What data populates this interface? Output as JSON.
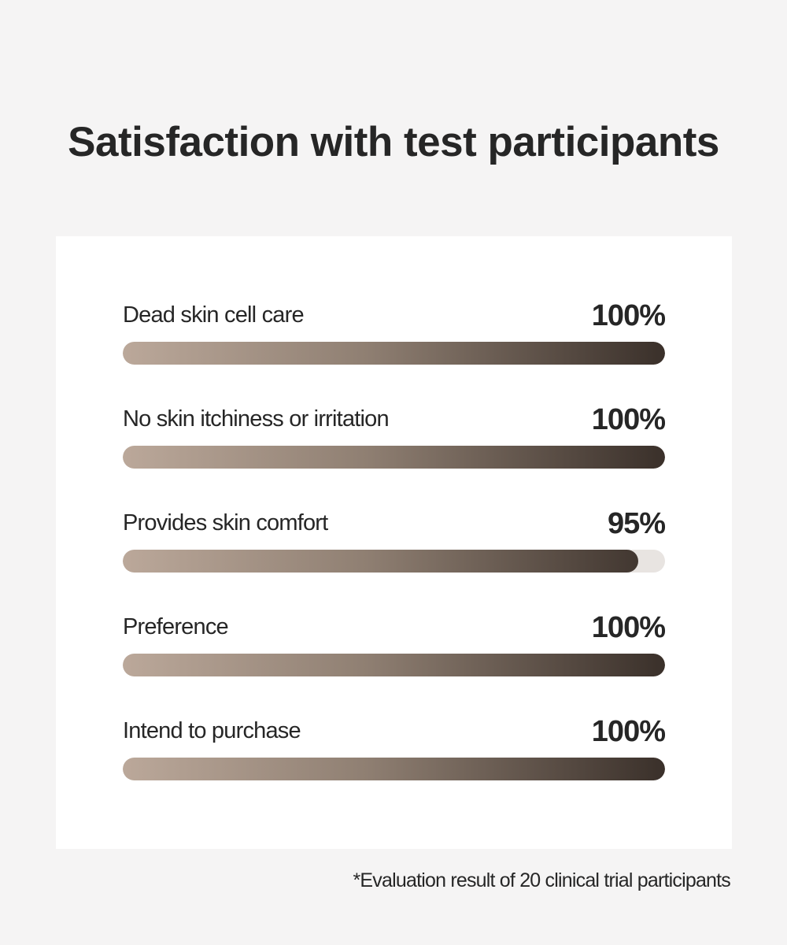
{
  "title": "Satisfaction with test participants",
  "footnote": "*Evaluation result of 20 clinical trial participants",
  "colors": {
    "background": "#f5f4f4",
    "card": "#ffffff",
    "text": "#262626",
    "bar_start": "#bba89a",
    "bar_mid": "#8f7f72",
    "bar_end": "#3a302a"
  },
  "chart_data": {
    "type": "bar",
    "orientation": "horizontal",
    "unit": "%",
    "xlim": [
      0,
      100
    ],
    "items": [
      {
        "label": "Dead skin cell care",
        "value": 100,
        "display": "100%"
      },
      {
        "label": "No skin itchiness or irritation",
        "value": 100,
        "display": "100%"
      },
      {
        "label": "Provides skin comfort",
        "value": 95,
        "display": "95%"
      },
      {
        "label": "Preference",
        "value": 100,
        "display": "100%"
      },
      {
        "label": "Intend to purchase",
        "value": 100,
        "display": "100%"
      }
    ]
  }
}
